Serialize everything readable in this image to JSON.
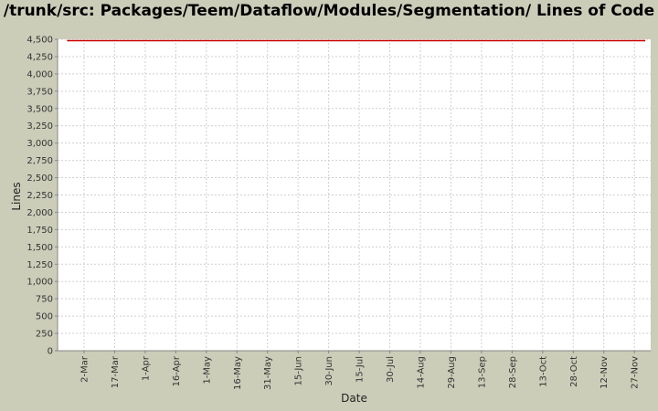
{
  "chart_data": {
    "type": "line",
    "title": "/trunk/src: Packages/Teem/Dataflow/Modules/Segmentation/ Lines of Code",
    "xlabel": "Date",
    "ylabel": "Lines",
    "ylim": [
      0,
      4500
    ],
    "yticks": [
      0,
      250,
      500,
      750,
      1000,
      1250,
      1500,
      1750,
      2000,
      2250,
      2500,
      2750,
      3000,
      3250,
      3500,
      3750,
      4000,
      4250,
      4500
    ],
    "ytick_labels": [
      "0",
      "250",
      "500",
      "750",
      "1,000",
      "1,250",
      "1,500",
      "1,750",
      "2,000",
      "2,250",
      "2,500",
      "2,750",
      "3,000",
      "3,250",
      "3,500",
      "3,750",
      "4,000",
      "4,250",
      "4,500"
    ],
    "xlim": [
      "Feb-17",
      "Dec-05"
    ],
    "xticks": [
      "Mar-02",
      "Mar-17",
      "Apr-01",
      "Apr-16",
      "May-01",
      "May-16",
      "May-31",
      "Jun-15",
      "Jun-30",
      "Jul-15",
      "Jul-30",
      "Aug-14",
      "Aug-29",
      "Sep-13",
      "Sep-28",
      "Oct-13",
      "Oct-28",
      "Nov-12",
      "Nov-27"
    ],
    "xtick_labels": [
      "2-Mar",
      "17-Mar",
      "1-Apr",
      "16-Apr",
      "1-May",
      "16-May",
      "31-May",
      "15-Jun",
      "30-Jun",
      "15-Jul",
      "30-Jul",
      "14-Aug",
      "29-Aug",
      "13-Sep",
      "28-Sep",
      "13-Oct",
      "28-Oct",
      "12-Nov",
      "27-Nov"
    ],
    "series": [
      {
        "x": [
          "Feb-22",
          "Dec-02"
        ],
        "y": [
          4480,
          4480
        ],
        "color": "#cc0000"
      }
    ],
    "grid": true,
    "background_color": "#ffffff",
    "gridline_color": "#d0d0d0"
  }
}
